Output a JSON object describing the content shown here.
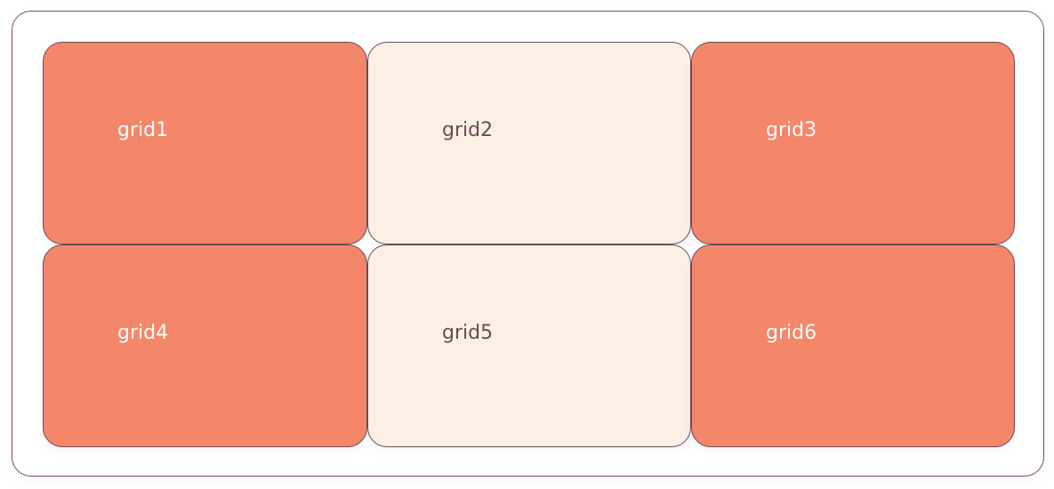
{
  "colors": {
    "accent": "#f4866a",
    "soft": "#fcefe4",
    "border": "#6b4a55"
  },
  "grid": {
    "cells": [
      {
        "label": "grid1",
        "style": "accent"
      },
      {
        "label": "grid2",
        "style": "soft"
      },
      {
        "label": "grid3",
        "style": "accent"
      },
      {
        "label": "grid4",
        "style": "accent"
      },
      {
        "label": "grid5",
        "style": "soft"
      },
      {
        "label": "grid6",
        "style": "accent"
      }
    ]
  }
}
